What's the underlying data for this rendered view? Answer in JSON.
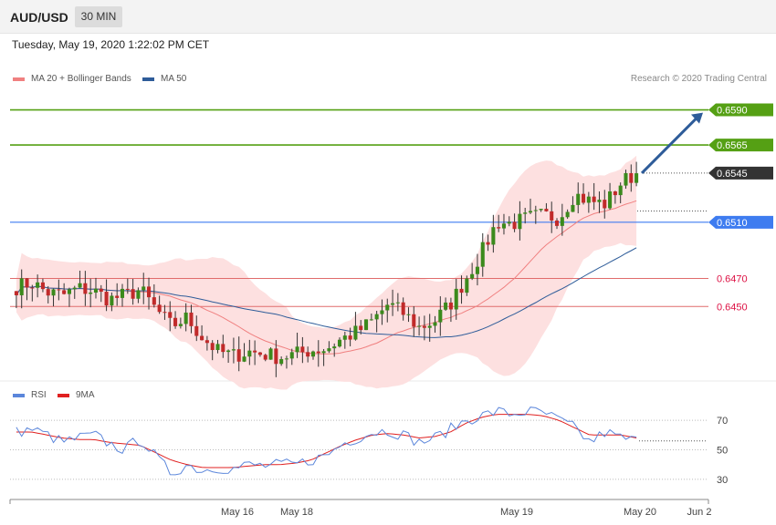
{
  "header": {
    "symbol": "AUD/USD",
    "timeframe": "30 MIN"
  },
  "datetime": "Tuesday, May 19, 2020 1:22:02 PM CET",
  "credit": "Research © 2020 Trading Central",
  "colors": {
    "support": "#3e7cf0",
    "resistance": "#55a014",
    "pivot": "#e06c6c",
    "last": "#333333",
    "ma20": "#f08080",
    "ma50": "#2e5c99",
    "bb_fill": "#fde0e0",
    "rsi": "#5b86db",
    "rsi_ma": "#e02020",
    "arrow": "#2e5c99"
  },
  "price_panel": {
    "legend": [
      {
        "label": "MA 20 + Bollinger Bands",
        "color": "#f08080"
      },
      {
        "label": "MA 50",
        "color": "#2e5c99"
      }
    ],
    "levels": [
      {
        "label": "0.6590",
        "value": 0.659,
        "kind": "resistance"
      },
      {
        "label": "0.6565",
        "value": 0.6565,
        "kind": "resistance"
      },
      {
        "label": "0.6545",
        "value": 0.6545,
        "kind": "last"
      },
      {
        "label": "0.6510",
        "value": 0.651,
        "kind": "support"
      },
      {
        "label": "0.6470",
        "value": 0.647,
        "kind": "pivot"
      },
      {
        "label": "0.6450",
        "value": 0.645,
        "kind": "pivot"
      }
    ]
  },
  "rsi_panel": {
    "legend": [
      {
        "label": "RSI",
        "color": "#5b86db"
      },
      {
        "label": "9MA",
        "color": "#e02020"
      }
    ],
    "ticks": [
      "70",
      "50",
      "30"
    ]
  },
  "x_axis": {
    "labels": [
      "May 16",
      "May 18",
      "May 19",
      "May 20",
      "Jun 2"
    ]
  },
  "chart_data": {
    "type": "candlestick",
    "instrument": "AUD/USD",
    "interval": "30 MIN",
    "price_range": [
      0.6397,
      0.6615
    ],
    "close_path": [
      0.6464,
      0.6467,
      0.646,
      0.6458,
      0.6463,
      0.6461,
      0.6455,
      0.6458,
      0.6462,
      0.6448,
      0.6436,
      0.6442,
      0.6428,
      0.6418,
      0.6415,
      0.6418,
      0.6416,
      0.6414,
      0.6416,
      0.6419,
      0.642,
      0.6427,
      0.6432,
      0.644,
      0.6452,
      0.6445,
      0.6435,
      0.644,
      0.6452,
      0.647,
      0.6488,
      0.651,
      0.6509,
      0.6513,
      0.6515,
      0.6513,
      0.653,
      0.6525,
      0.6523,
      0.6538,
      0.6545
    ],
    "pivot_levels": [
      0.659,
      0.6565,
      0.651,
      0.647,
      0.645
    ],
    "last_price": 0.6545,
    "rsi_range": [
      17,
      83
    ],
    "rsi_ticks": [
      70,
      50,
      30
    ],
    "rsi": [
      62,
      64,
      60,
      55,
      58,
      60,
      54,
      50,
      58,
      45,
      34,
      40,
      36,
      38,
      37,
      40,
      39,
      40,
      40,
      43,
      46,
      54,
      58,
      62,
      63,
      60,
      55,
      58,
      64,
      70,
      73,
      76,
      74,
      76,
      75,
      70,
      65,
      55,
      62,
      58,
      56
    ],
    "rsi_ma": [
      62,
      62,
      60,
      58,
      57,
      57,
      55,
      54,
      53,
      48,
      43,
      40,
      38,
      38,
      38,
      39,
      40,
      40,
      41,
      43,
      48,
      53,
      57,
      60,
      61,
      60,
      58,
      59,
      62,
      68,
      72,
      74,
      74,
      74,
      73,
      70,
      65,
      60,
      60,
      60,
      58
    ],
    "x_labels": [
      "May 16",
      "May 18",
      "May 19",
      "May 20",
      "Jun 2"
    ]
  }
}
